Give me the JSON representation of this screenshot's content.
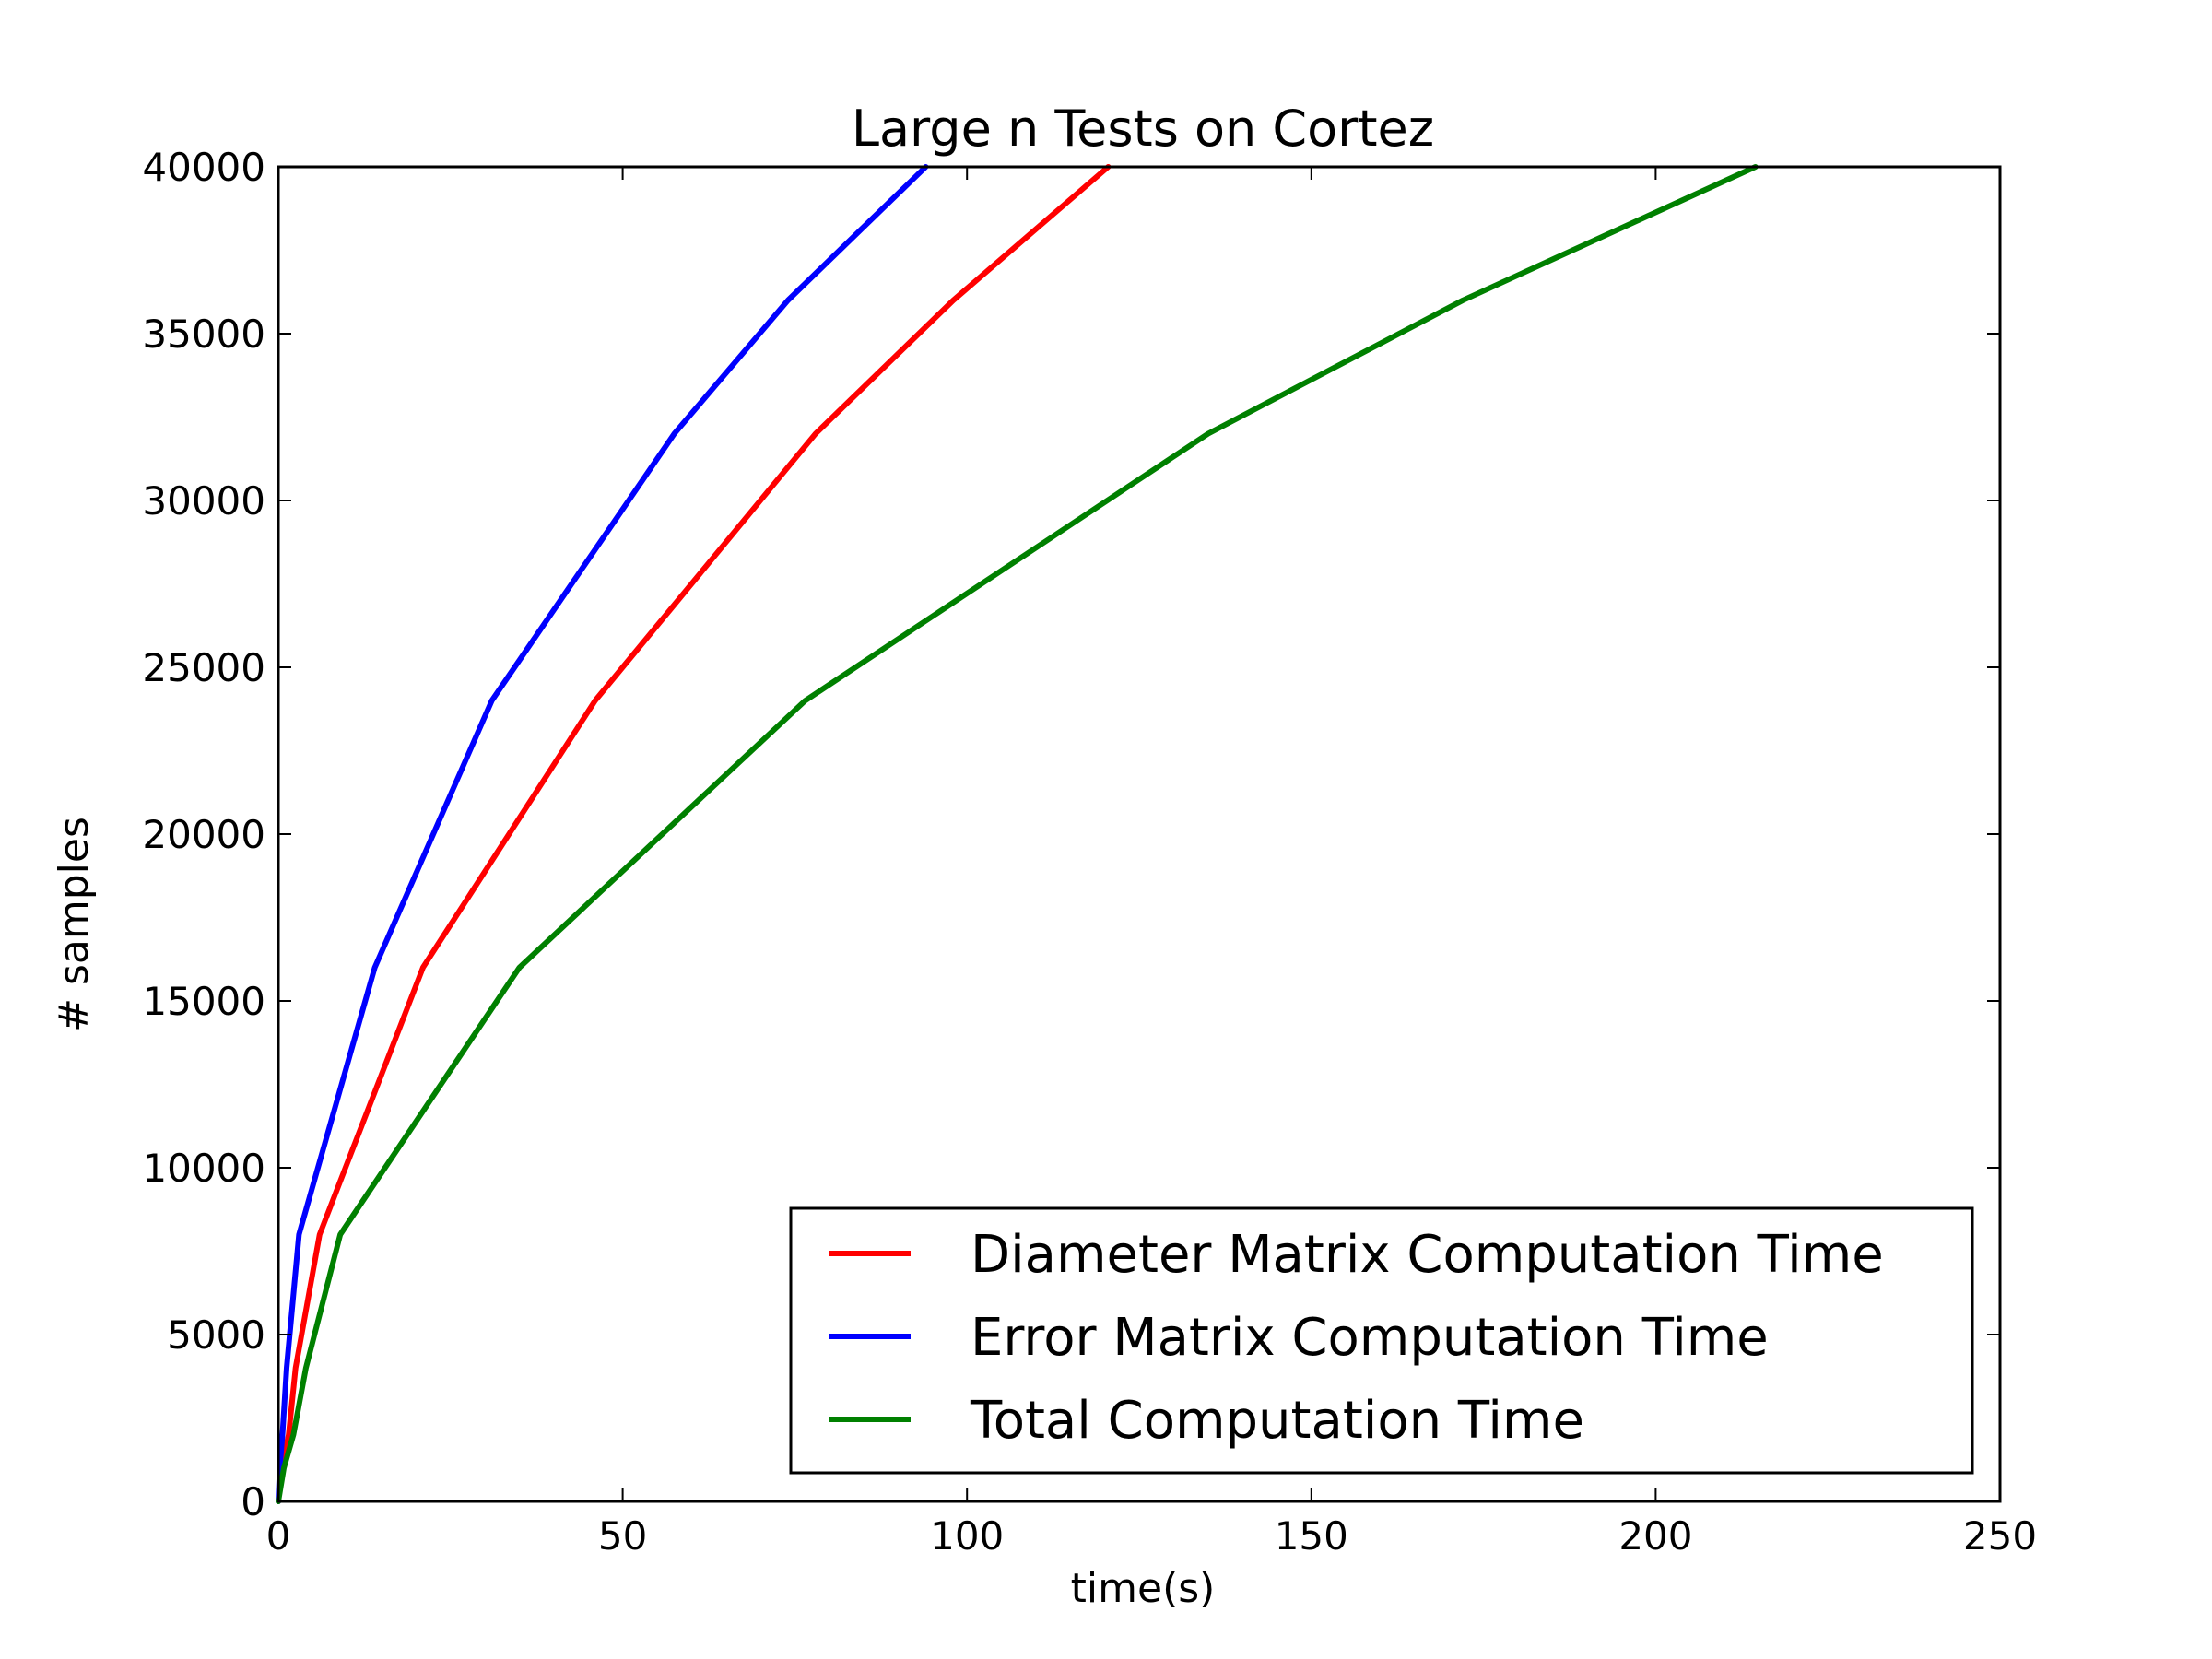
{
  "chart_data": {
    "type": "line",
    "title": "Large n Tests on Cortez",
    "xlabel": "time(s)",
    "ylabel": "# samples",
    "xlim": [
      0,
      250
    ],
    "ylim": [
      0,
      40000
    ],
    "xticks": [
      0,
      50,
      100,
      150,
      200,
      250
    ],
    "yticks": [
      0,
      5000,
      10000,
      15000,
      20000,
      25000,
      30000,
      35000,
      40000
    ],
    "xtick_labels": [
      "0",
      "50",
      "100",
      "150",
      "200",
      "250"
    ],
    "ytick_labels": [
      "0",
      "5000",
      "10000",
      "15000",
      "20000",
      "25000",
      "30000",
      "35000",
      "40000"
    ],
    "grid": false,
    "legend_position": "lower-right",
    "series": [
      {
        "name": "Diameter Matrix Computation Time",
        "color": "#ff0000",
        "x": [
          0,
          0.5,
          1.5,
          2.5,
          6,
          21,
          46,
          78,
          98,
          120.5
        ],
        "y": [
          0,
          1000,
          2000,
          4000,
          8000,
          16000,
          24000,
          32000,
          36000,
          40000
        ]
      },
      {
        "name": "Error Matrix Computation Time",
        "color": "#0000ff",
        "x": [
          0,
          0.2,
          0.6,
          1.2,
          3,
          14,
          31,
          57.5,
          74,
          94
        ],
        "y": [
          0,
          1000,
          2000,
          4000,
          8000,
          16000,
          24000,
          32000,
          36000,
          40000
        ]
      },
      {
        "name": "Total Computation Time",
        "color": "#008000",
        "x": [
          0,
          0.8,
          2.2,
          4,
          9,
          35,
          76.5,
          135,
          172,
          214.5
        ],
        "y": [
          0,
          1000,
          2000,
          4000,
          8000,
          16000,
          24000,
          32000,
          36000,
          40000
        ]
      }
    ]
  }
}
